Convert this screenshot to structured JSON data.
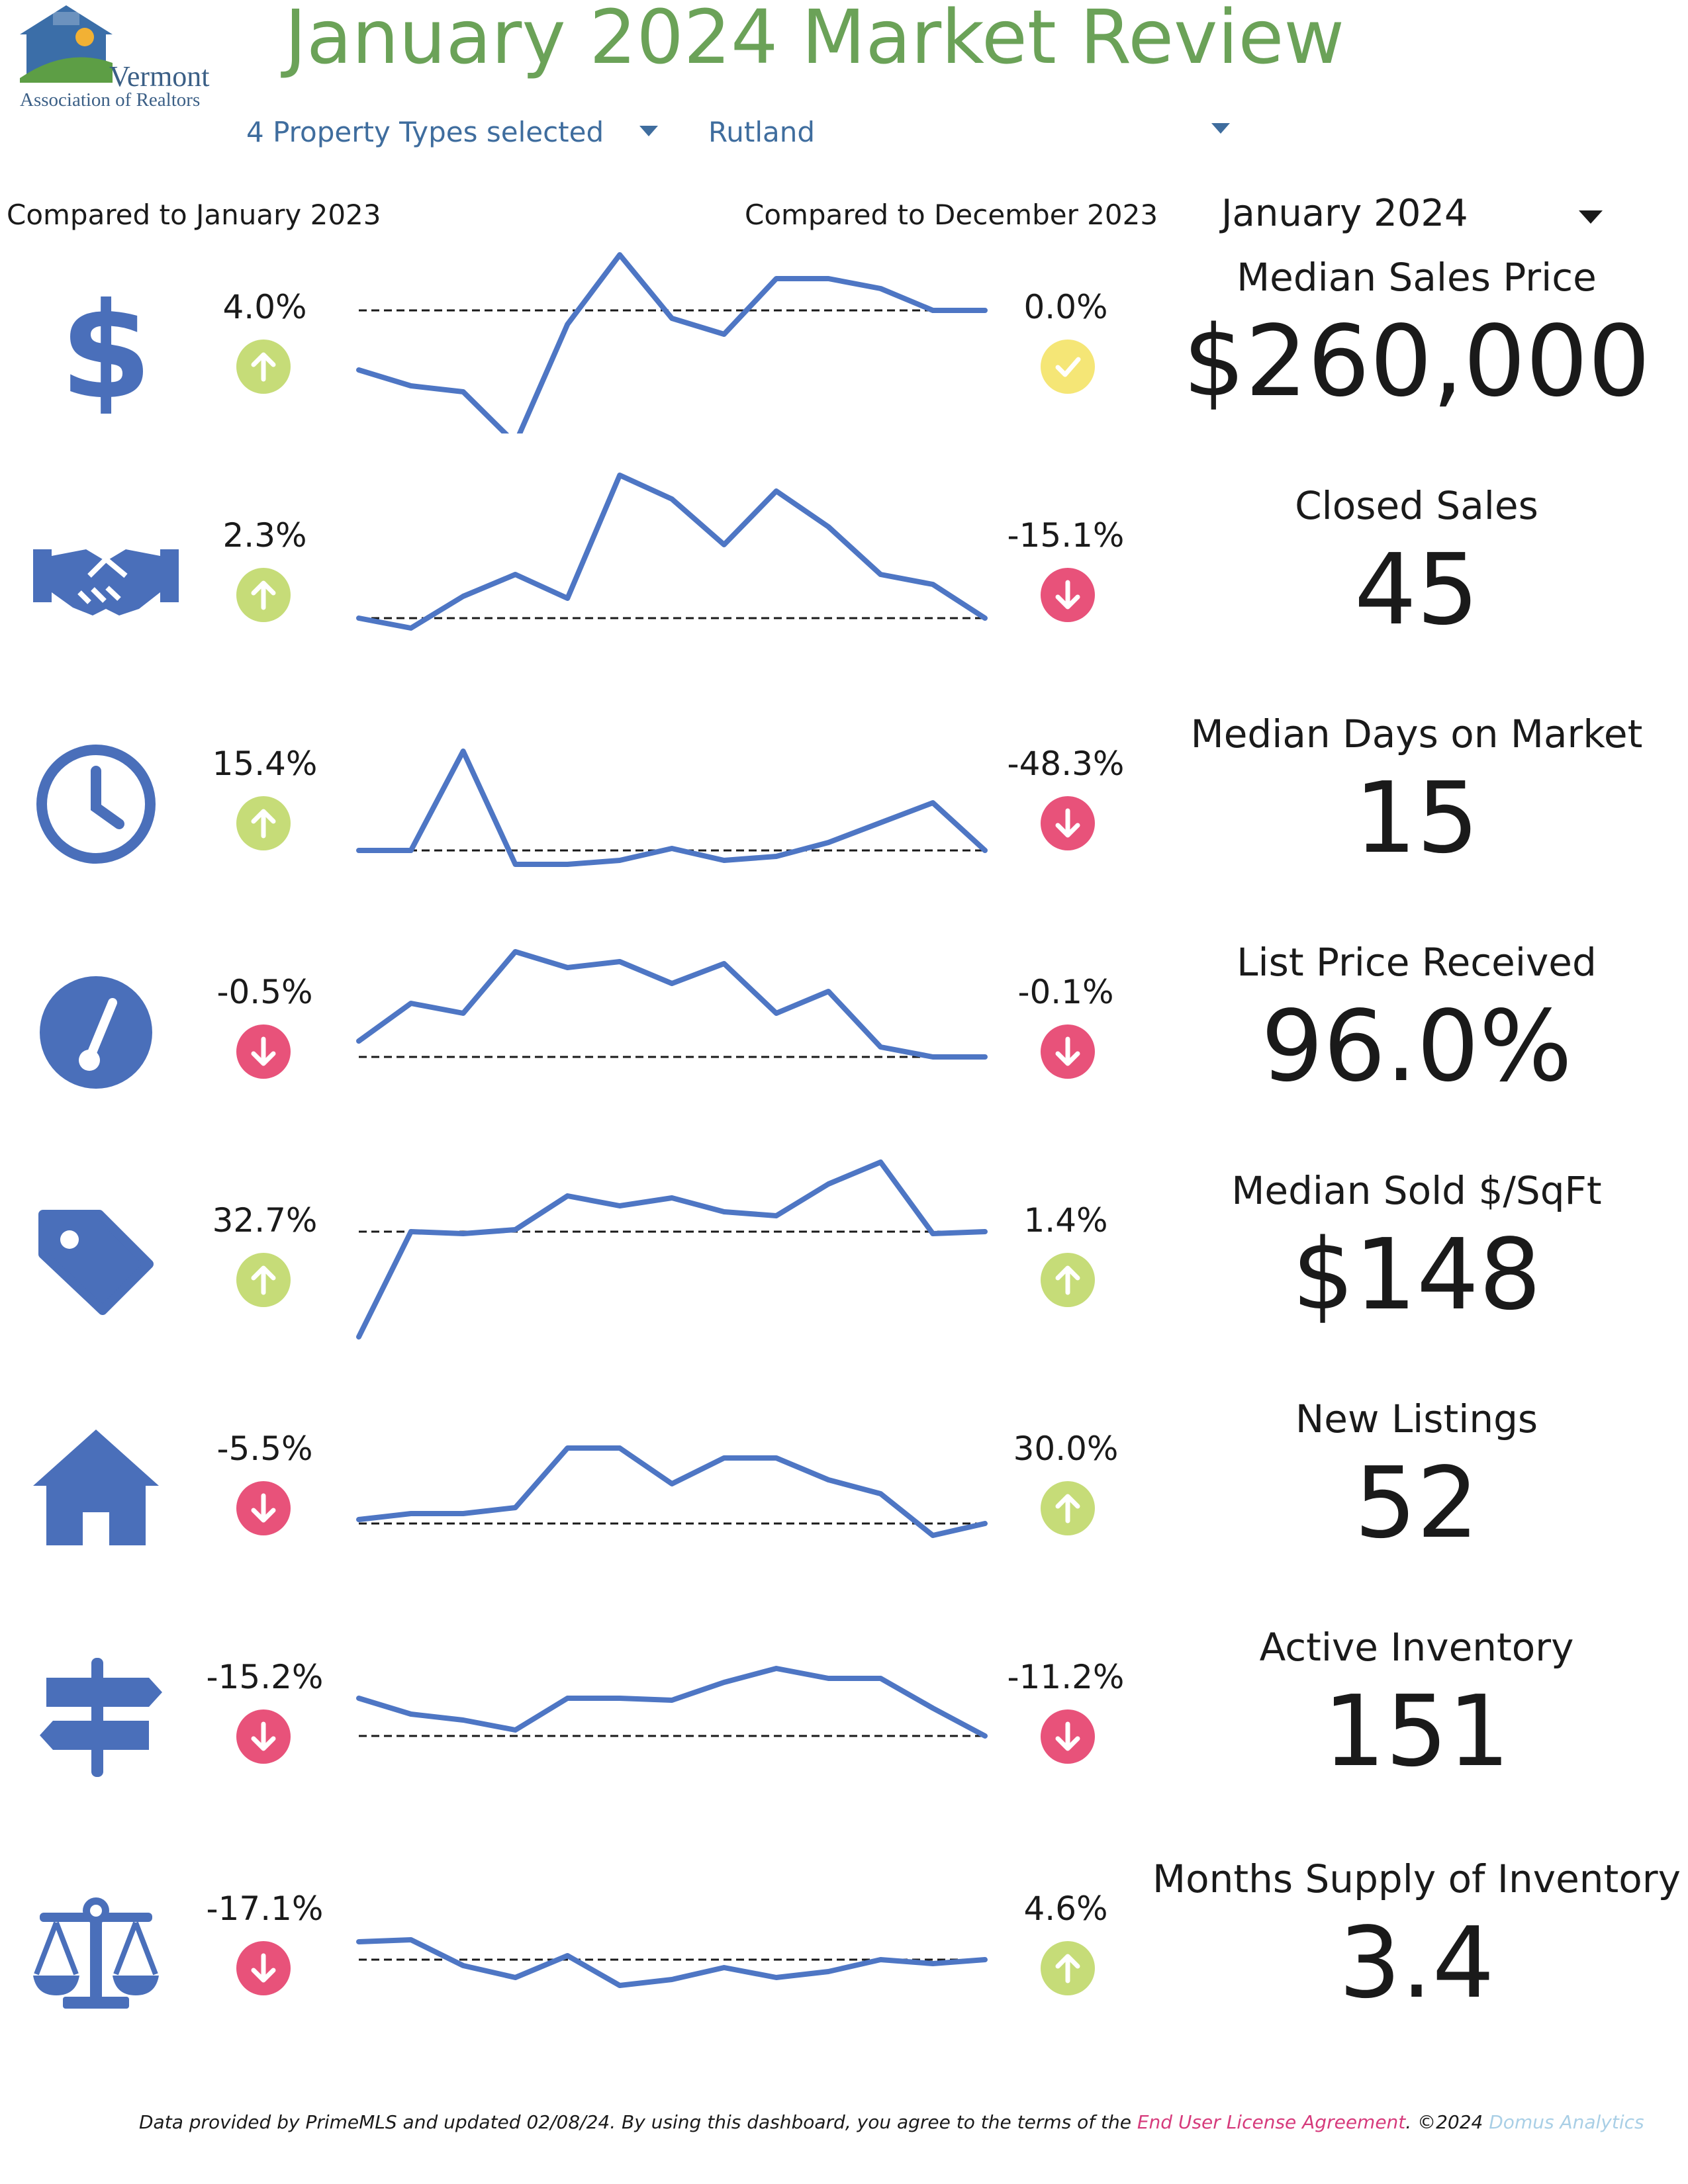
{
  "logo": {
    "line1": "Vermont",
    "line2": "Association of Realtors"
  },
  "title": "January 2024 Market Review",
  "filters": {
    "property_types": "4 Property Types selected",
    "area": "Rutland"
  },
  "comparison_headers": {
    "yoy": "Compared to January 2023",
    "mom": "Compared to December 2023"
  },
  "month_select": "January 2024",
  "colors": {
    "title_green": "#6ba258",
    "icon_blue": "#4a6fba",
    "line_blue": "#4e76c4",
    "up_green": "#c6dc78",
    "down_red": "#e8527a",
    "flat_yellow": "#f5e676"
  },
  "metrics": [
    {
      "title": "Median Sales Price",
      "value": "$260,000",
      "icon": "dollar-icon",
      "yoy_change": "4.0%",
      "yoy_dir": "up",
      "mom_change": "0.0%",
      "mom_dir": "flat",
      "trend": [
        0.32,
        0.24,
        0.21,
        -0.05,
        0.55,
        0.9,
        0.58,
        0.5,
        0.78,
        0.78,
        0.73,
        0.62,
        0.62
      ],
      "baseline": 0.62
    },
    {
      "title": "Closed Sales",
      "value": "45",
      "icon": "handshake-icon",
      "yoy_change": "2.3%",
      "yoy_dir": "up",
      "mom_change": "-15.1%",
      "mom_dir": "down",
      "trend": [
        0.22,
        0.17,
        0.33,
        0.44,
        0.32,
        0.94,
        0.82,
        0.59,
        0.86,
        0.68,
        0.44,
        0.39,
        0.22
      ],
      "baseline": 0.22
    },
    {
      "title": "Median Days on Market",
      "value": "15",
      "icon": "clock-icon",
      "yoy_change": "15.4%",
      "yoy_dir": "up",
      "mom_change": "-48.3%",
      "mom_dir": "down",
      "trend": [
        0.2,
        0.2,
        0.7,
        0.13,
        0.13,
        0.15,
        0.21,
        0.15,
        0.17,
        0.24,
        0.34,
        0.44,
        0.2
      ],
      "baseline": 0.2
    },
    {
      "title": "List Price Received",
      "value": "96.0%",
      "icon": "gauge-icon",
      "yoy_change": "-0.5%",
      "yoy_dir": "down",
      "mom_change": "-0.1%",
      "mom_dir": "down",
      "trend": [
        0.39,
        0.58,
        0.53,
        0.84,
        0.76,
        0.79,
        0.68,
        0.78,
        0.53,
        0.64,
        0.36,
        0.31,
        0.31
      ],
      "baseline": 0.31
    },
    {
      "title": "Median Sold $/SqFt",
      "value": "$148",
      "icon": "price-tag-icon",
      "yoy_change": "32.7%",
      "yoy_dir": "up",
      "mom_change": "1.4%",
      "mom_dir": "up",
      "trend": [
        0.05,
        0.58,
        0.57,
        0.59,
        0.76,
        0.71,
        0.75,
        0.68,
        0.66,
        0.82,
        0.93,
        0.57,
        0.58
      ],
      "baseline": 0.58
    },
    {
      "title": "New Listings",
      "value": "52",
      "icon": "house-icon",
      "yoy_change": "-5.5%",
      "yoy_dir": "down",
      "mom_change": "30.0%",
      "mom_dir": "up",
      "trend": [
        0.28,
        0.31,
        0.31,
        0.34,
        0.64,
        0.64,
        0.46,
        0.59,
        0.59,
        0.48,
        0.41,
        0.2,
        0.26
      ],
      "baseline": 0.26
    },
    {
      "title": "Active Inventory",
      "value": "151",
      "icon": "signpost-icon",
      "yoy_change": "-15.2%",
      "yoy_dir": "down",
      "mom_change": "-11.2%",
      "mom_dir": "down",
      "trend": [
        0.53,
        0.45,
        0.42,
        0.37,
        0.53,
        0.53,
        0.52,
        0.61,
        0.68,
        0.63,
        0.63,
        0.48,
        0.34
      ],
      "baseline": 0.34
    },
    {
      "title": "Months Supply of Inventory",
      "value": "3.4",
      "icon": "balance-scale-icon",
      "yoy_change": "-17.1%",
      "yoy_dir": "down",
      "mom_change": "4.6%",
      "mom_dir": "up",
      "trend": [
        0.47,
        0.48,
        0.35,
        0.29,
        0.4,
        0.25,
        0.28,
        0.34,
        0.29,
        0.32,
        0.38,
        0.36,
        0.38
      ],
      "baseline": 0.38
    }
  ],
  "footer": {
    "text": "Data provided by PrimeMLS and updated 02/08/24.  By using this dashboard, you agree to the terms of the ",
    "link": "End User License Agreement",
    "copyright": ".  ©2024 ",
    "brand": "Domus Analytics"
  }
}
